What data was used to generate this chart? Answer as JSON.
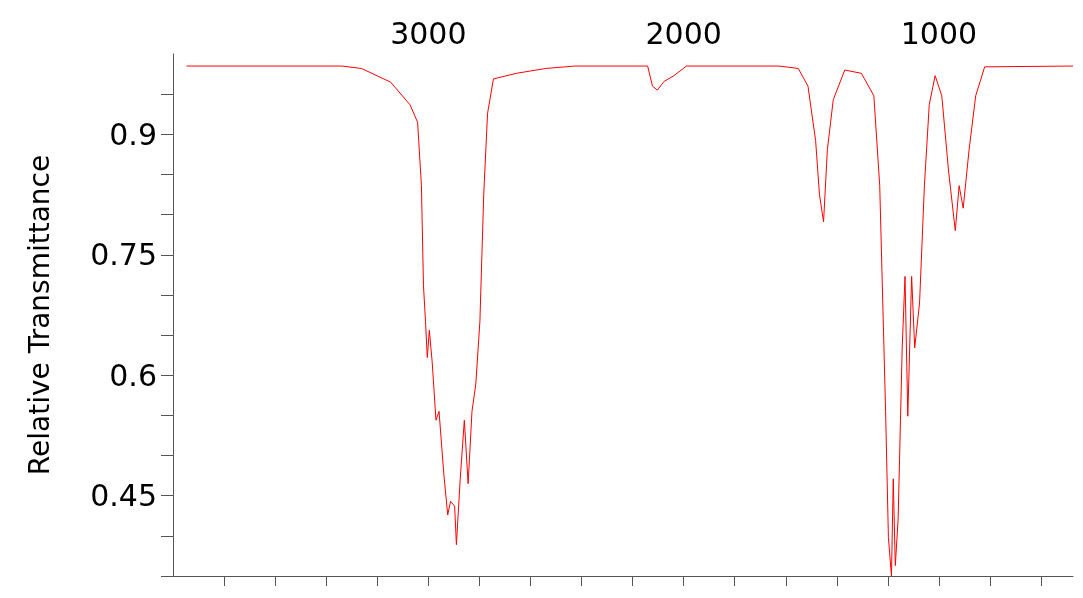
{
  "chart_data": {
    "type": "line",
    "ylabel": "Relative Transmittance",
    "color": "#ff0000",
    "grid": false,
    "marker": "none",
    "line_style": "solid",
    "xlim": [
      4000,
      475
    ],
    "ylim": [
      0.35,
      1.0
    ],
    "xticks": [
      {
        "value": 3800,
        "label": null
      },
      {
        "value": 3600,
        "label": null
      },
      {
        "value": 3400,
        "label": null
      },
      {
        "value": 3200,
        "label": null
      },
      3000,
      {
        "value": 2800,
        "label": null
      },
      {
        "value": 2600,
        "label": null
      },
      {
        "value": 2400,
        "label": null
      },
      {
        "value": 2200,
        "label": null
      },
      2000,
      {
        "value": 1800,
        "label": null
      },
      {
        "value": 1600,
        "label": null
      },
      {
        "value": 1400,
        "label": null
      },
      {
        "value": 1200,
        "label": null
      },
      1000,
      {
        "value": 800,
        "label": null
      },
      {
        "value": 600,
        "label": null
      }
    ],
    "yticks": [
      {
        "value": 0.35,
        "label": null
      },
      {
        "value": 0.4,
        "label": null
      },
      0.45,
      {
        "value": 0.5,
        "label": null
      },
      {
        "value": 0.55,
        "label": null
      },
      0.6,
      {
        "value": 0.65,
        "label": null
      },
      {
        "value": 0.7,
        "label": null
      },
      0.75,
      {
        "value": 0.8,
        "label": null
      },
      {
        "value": 0.85,
        "label": null
      },
      0.9,
      {
        "value": 0.95,
        "label": null
      }
    ],
    "x": [
      3947,
      3338,
      3262,
      3148,
      3072,
      3042,
      3027,
      3019,
      3011,
      3004,
      2996,
      2985,
      2970,
      2958,
      2939,
      2924,
      2913,
      2897,
      2890,
      2875,
      2859,
      2844,
      2829,
      2814,
      2798,
      2783,
      2768,
      2745,
      2654,
      2540,
      2426,
      2141,
      2122,
      2103,
      2076,
      2038,
      1989,
      1627,
      1551,
      1513,
      1483,
      1468,
      1452,
      1437,
      1414,
      1369,
      1304,
      1255,
      1232,
      1209,
      1198,
      1186,
      1179,
      1171,
      1160,
      1144,
      1133,
      1122,
      1107,
      1095,
      1076,
      1057,
      1038,
      1015,
      989,
      962,
      936,
      921,
      905,
      882,
      856,
      821,
      475
    ],
    "values": [
      0.985,
      0.985,
      0.982,
      0.965,
      0.937,
      0.915,
      0.836,
      0.712,
      0.667,
      0.622,
      0.656,
      0.617,
      0.544,
      0.555,
      0.476,
      0.426,
      0.443,
      0.437,
      0.389,
      0.471,
      0.544,
      0.465,
      0.555,
      0.589,
      0.667,
      0.825,
      0.926,
      0.969,
      0.976,
      0.982,
      0.985,
      0.985,
      0.96,
      0.955,
      0.966,
      0.973,
      0.985,
      0.985,
      0.982,
      0.96,
      0.892,
      0.825,
      0.791,
      0.881,
      0.943,
      0.98,
      0.976,
      0.948,
      0.836,
      0.555,
      0.398,
      0.35,
      0.471,
      0.363,
      0.42,
      0.634,
      0.723,
      0.549,
      0.723,
      0.634,
      0.69,
      0.836,
      0.937,
      0.973,
      0.948,
      0.853,
      0.78,
      0.836,
      0.808,
      0.881,
      0.948,
      0.984,
      0.985
    ]
  }
}
